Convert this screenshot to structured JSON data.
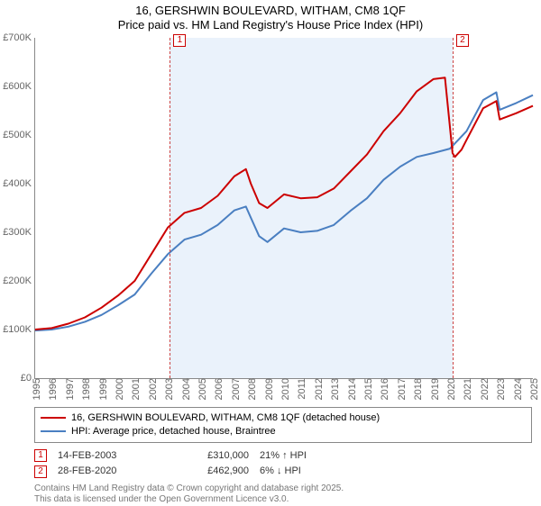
{
  "title_line1": "16, GERSHWIN BOULEVARD, WITHAM, CM8 1QF",
  "title_line2": "Price paid vs. HM Land Registry's House Price Index (HPI)",
  "chart": {
    "type": "line",
    "x_start_year": 1995,
    "x_end_year": 2025,
    "xticks": [
      1995,
      1996,
      1997,
      1998,
      1999,
      2000,
      2001,
      2002,
      2003,
      2004,
      2005,
      2006,
      2007,
      2008,
      2009,
      2010,
      2011,
      2012,
      2013,
      2014,
      2015,
      2016,
      2017,
      2018,
      2019,
      2020,
      2021,
      2022,
      2023,
      2024,
      2025
    ],
    "ylim": [
      0,
      700000
    ],
    "yticks": [
      0,
      100000,
      200000,
      300000,
      400000,
      500000,
      600000,
      700000
    ],
    "ytick_labels": [
      "£0",
      "100K",
      "200K",
      "300K",
      "400K",
      "500K",
      "600K",
      "700K"
    ],
    "background_color": "#ffffff",
    "shade_color": "#eaf2fb",
    "shade_from_year": 2003.12,
    "shade_to_year": 2020.16,
    "marker_box_border": "#c00",
    "vline_color": "#c44",
    "series": [
      {
        "name": "property",
        "label": "16, GERSHWIN BOULEVARD, WITHAM, CM8 1QF (detached house)",
        "color": "#cc0000",
        "width": 2,
        "points": [
          [
            1995,
            100000
          ],
          [
            1996,
            103000
          ],
          [
            1997,
            112000
          ],
          [
            1998,
            125000
          ],
          [
            1999,
            145000
          ],
          [
            2000,
            170000
          ],
          [
            2001,
            200000
          ],
          [
            2002,
            255000
          ],
          [
            2003,
            310000
          ],
          [
            2004,
            340000
          ],
          [
            2005,
            350000
          ],
          [
            2006,
            375000
          ],
          [
            2007,
            415000
          ],
          [
            2007.7,
            430000
          ],
          [
            2008,
            400000
          ],
          [
            2008.5,
            360000
          ],
          [
            2009,
            350000
          ],
          [
            2010,
            378000
          ],
          [
            2011,
            370000
          ],
          [
            2012,
            372000
          ],
          [
            2013,
            390000
          ],
          [
            2014,
            425000
          ],
          [
            2015,
            460000
          ],
          [
            2016,
            508000
          ],
          [
            2017,
            545000
          ],
          [
            2018,
            590000
          ],
          [
            2019,
            615000
          ],
          [
            2019.7,
            618000
          ],
          [
            2020.16,
            462900
          ],
          [
            2020.3,
            455000
          ],
          [
            2020.7,
            470000
          ],
          [
            2021,
            490000
          ],
          [
            2022,
            555000
          ],
          [
            2022.8,
            570000
          ],
          [
            2023,
            532000
          ],
          [
            2024,
            545000
          ],
          [
            2025,
            560000
          ]
        ]
      },
      {
        "name": "hpi",
        "label": "HPI: Average price, detached house, Braintree",
        "color": "#4a7fc1",
        "width": 2,
        "points": [
          [
            1995,
            98000
          ],
          [
            1996,
            100000
          ],
          [
            1997,
            106000
          ],
          [
            1998,
            116000
          ],
          [
            1999,
            130000
          ],
          [
            2000,
            150000
          ],
          [
            2001,
            172000
          ],
          [
            2002,
            215000
          ],
          [
            2003,
            255000
          ],
          [
            2004,
            285000
          ],
          [
            2005,
            295000
          ],
          [
            2006,
            315000
          ],
          [
            2007,
            345000
          ],
          [
            2007.7,
            353000
          ],
          [
            2008,
            330000
          ],
          [
            2008.5,
            292000
          ],
          [
            2009,
            280000
          ],
          [
            2010,
            308000
          ],
          [
            2011,
            300000
          ],
          [
            2012,
            303000
          ],
          [
            2013,
            315000
          ],
          [
            2014,
            344000
          ],
          [
            2015,
            370000
          ],
          [
            2016,
            408000
          ],
          [
            2017,
            435000
          ],
          [
            2018,
            455000
          ],
          [
            2019,
            463000
          ],
          [
            2020,
            472000
          ],
          [
            2021,
            508000
          ],
          [
            2022,
            572000
          ],
          [
            2022.8,
            588000
          ],
          [
            2023,
            552000
          ],
          [
            2024,
            566000
          ],
          [
            2025,
            582000
          ]
        ]
      }
    ],
    "markers": [
      {
        "n": "1",
        "year": 2003.12
      },
      {
        "n": "2",
        "year": 2020.16
      }
    ]
  },
  "legend": {
    "rows": [
      {
        "color": "#cc0000",
        "text": "16, GERSHWIN BOULEVARD, WITHAM, CM8 1QF (detached house)"
      },
      {
        "color": "#4a7fc1",
        "text": "HPI: Average price, detached house, Braintree"
      }
    ]
  },
  "transactions": [
    {
      "n": "1",
      "date": "14-FEB-2003",
      "price": "£310,000",
      "pct": "21% ↑ HPI"
    },
    {
      "n": "2",
      "date": "28-FEB-2020",
      "price": "£462,900",
      "pct": "6% ↓ HPI"
    }
  ],
  "footer_line1": "Contains HM Land Registry data © Crown copyright and database right 2025.",
  "footer_line2": "This data is licensed under the Open Government Licence v3.0."
}
